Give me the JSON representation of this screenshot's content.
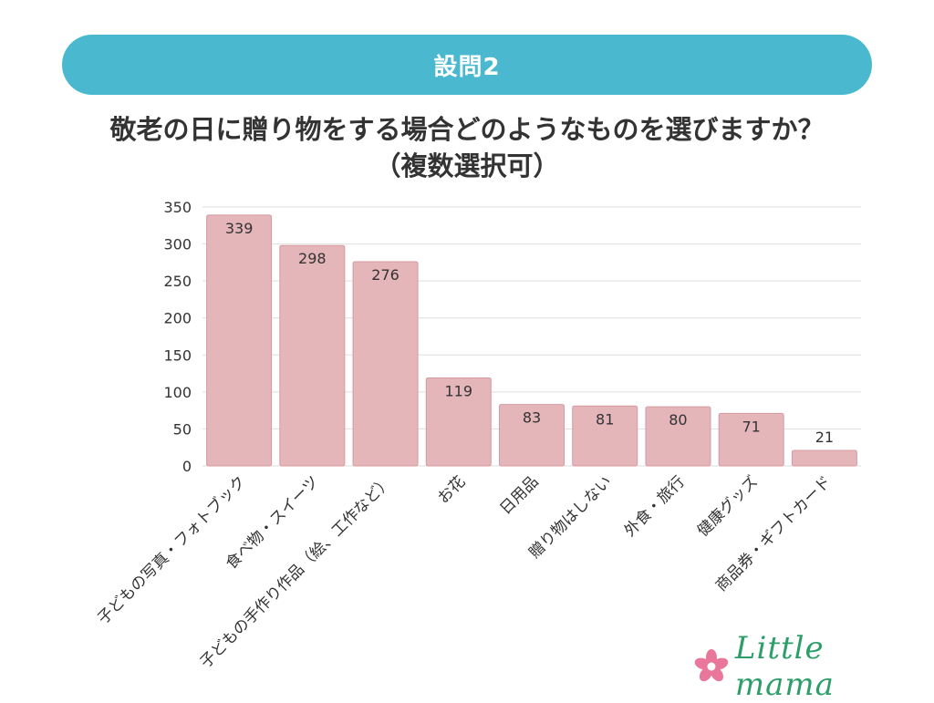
{
  "header": {
    "banner": "設問2",
    "title_line1": "敬老の日に贈り物をする場合どのようなものを選びますか？",
    "title_line2": "（複数選択可）"
  },
  "brand": {
    "name": "Little mama",
    "accent": "#4ab8cf",
    "logo_color": "#2d9e6a",
    "flower_color": "#e8779b"
  },
  "colors": {
    "bar": "#e4b5b9",
    "bar_edge": "#d79aa0",
    "grid": "#dedede",
    "text": "#333333"
  },
  "chart_data": {
    "type": "bar",
    "title": "敬老の日に贈り物をする場合どのようなものを選びますか？（複数選択可）",
    "categories": [
      "子どもの写真・フォトブック",
      "食べ物・スイーツ",
      "子どもの手作り作品（絵、工作など）",
      "お花",
      "日用品",
      "贈り物はしない",
      "外食・旅行",
      "健康グッズ",
      "商品券・ギフトカード"
    ],
    "values": [
      339,
      298,
      276,
      119,
      83,
      81,
      80,
      71,
      21
    ],
    "yticks": [
      0,
      50,
      100,
      150,
      200,
      250,
      300,
      350
    ],
    "ylim": [
      0,
      350
    ],
    "grid": true,
    "xlabel": "",
    "ylabel": ""
  }
}
